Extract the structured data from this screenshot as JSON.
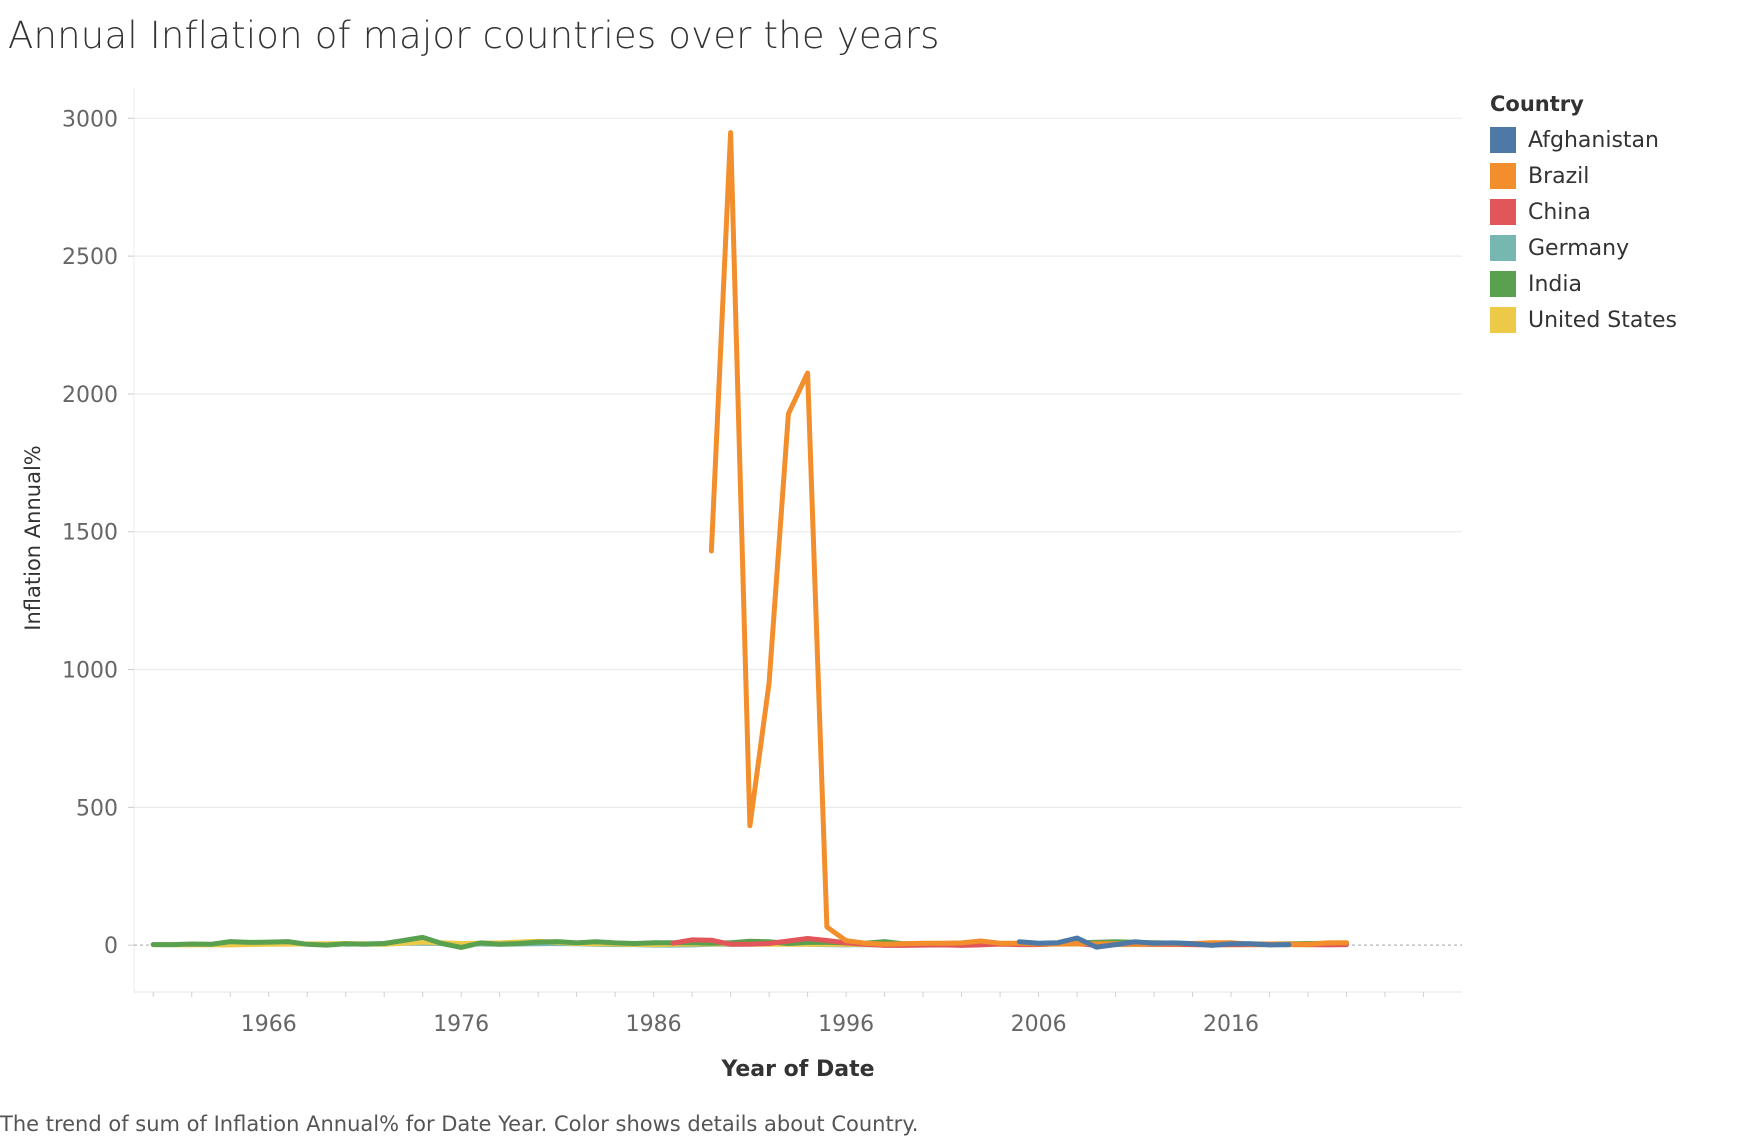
{
  "title": "Annual Inflation of major countries over the years",
  "caption": "The trend of sum of Inflation Annual% for Date Year.  Color shows details about Country.",
  "legend": {
    "title": "Country",
    "items": [
      {
        "label": "Afghanistan",
        "color": "#4e79a7"
      },
      {
        "label": "Brazil",
        "color": "#f28e2b"
      },
      {
        "label": "China",
        "color": "#e15759"
      },
      {
        "label": "Germany",
        "color": "#76b7b2"
      },
      {
        "label": "India",
        "color": "#59a14f"
      },
      {
        "label": "United States",
        "color": "#edc948"
      }
    ]
  },
  "chart_data": {
    "type": "line",
    "title": "Annual Inflation of major countries over the years",
    "xlabel": "Year of Date",
    "ylabel": "Inflation Annual%",
    "xlim": [
      1959,
      2028
    ],
    "ylim": [
      -170,
      3110
    ],
    "x_ticks": [
      "1966",
      "1976",
      "1986",
      "1996",
      "2006",
      "2016"
    ],
    "y_ticks": [
      "0",
      "500",
      "1000",
      "1500",
      "2000",
      "2500",
      "3000"
    ],
    "grid": true,
    "legend_position": "right",
    "series": [
      {
        "name": "Germany",
        "color": "#76b7b2",
        "x": [
          1970,
          1971,
          1972,
          1973,
          1974,
          1975,
          1976,
          1977,
          1978,
          1979,
          1980,
          1981,
          1982,
          1983,
          1984,
          1985,
          1986,
          1987,
          1988,
          1989,
          1990,
          1991,
          1992,
          1993,
          1994,
          1995,
          1996,
          1997,
          1998,
          1999,
          2000
        ],
        "y": [
          3,
          5,
          5,
          7,
          7,
          6,
          4,
          4,
          3,
          4,
          5,
          6,
          5,
          3,
          2,
          2,
          0,
          0,
          1,
          3,
          3,
          4,
          5,
          4,
          3,
          2,
          1,
          2,
          1,
          1,
          1
        ]
      },
      {
        "name": "United States",
        "color": "#edc948",
        "x": [
          1960,
          1962,
          1964,
          1966,
          1968,
          1970,
          1972,
          1974,
          1976,
          1978,
          1980,
          1982,
          1984,
          1986,
          1988,
          1990,
          1992,
          1994,
          1996,
          1998,
          2000,
          2002,
          2004,
          2006,
          2008,
          2010,
          2012,
          2014,
          2016,
          2018,
          2020,
          2022
        ],
        "y": [
          2,
          1,
          1,
          3,
          4,
          6,
          3,
          11,
          6,
          8,
          14,
          6,
          4,
          2,
          4,
          5,
          3,
          3,
          3,
          2,
          3,
          2,
          3,
          3,
          4,
          2,
          2,
          2,
          1,
          2,
          1,
          8
        ]
      },
      {
        "name": "India",
        "color": "#59a14f",
        "x": [
          1960,
          1961,
          1962,
          1963,
          1964,
          1965,
          1966,
          1967,
          1968,
          1969,
          1970,
          1971,
          1972,
          1973,
          1974,
          1975,
          1976,
          1977,
          1978,
          1979,
          1980,
          1981,
          1982,
          1983,
          1984,
          1985,
          1986,
          1987,
          1988,
          1989,
          1990,
          1991,
          1992,
          1993,
          1994,
          1995,
          1996,
          1997,
          1998,
          1999,
          2000,
          2002,
          2004,
          2006,
          2008,
          2010,
          2012,
          2014,
          2016,
          2018,
          2020,
          2022
        ],
        "y": [
          2,
          2,
          4,
          3,
          13,
          10,
          11,
          13,
          3,
          0,
          5,
          3,
          6,
          17,
          28,
          6,
          -8,
          8,
          3,
          6,
          11,
          13,
          8,
          12,
          8,
          6,
          9,
          9,
          9,
          7,
          9,
          14,
          12,
          6,
          10,
          10,
          9,
          7,
          13,
          5,
          4,
          4,
          4,
          6,
          8,
          12,
          9,
          6,
          5,
          4,
          6,
          7
        ]
      },
      {
        "name": "China",
        "color": "#e15759",
        "x": [
          1987,
          1988,
          1989,
          1990,
          1991,
          1992,
          1993,
          1994,
          1995,
          1996,
          1997,
          1998,
          1999,
          2000,
          2001,
          2002,
          2003,
          2004,
          2005,
          2006,
          2007,
          2008,
          2009,
          2010,
          2011,
          2012,
          2013,
          2014,
          2015,
          2016,
          2017,
          2018,
          2019,
          2020,
          2021,
          2022
        ],
        "y": [
          7,
          19,
          18,
          3,
          3,
          6,
          15,
          24,
          17,
          8,
          3,
          -1,
          -1,
          0,
          1,
          -1,
          1,
          4,
          2,
          2,
          5,
          6,
          -1,
          3,
          5,
          3,
          3,
          2,
          1,
          2,
          2,
          2,
          3,
          2,
          1,
          2
        ]
      },
      {
        "name": "Brazil",
        "color": "#f28e2b",
        "x": [
          1989,
          1990,
          1991,
          1992,
          1993,
          1994,
          1995,
          1996,
          1997,
          1998,
          1999,
          2000,
          2001,
          2002,
          2003,
          2004,
          2005,
          2006,
          2007,
          2008,
          2009,
          2010,
          2011,
          2012,
          2013,
          2014,
          2015,
          2016,
          2017,
          2018,
          2019,
          2020,
          2021,
          2022
        ],
        "y": [
          1430,
          2948,
          433,
          952,
          1928,
          2076,
          66,
          16,
          7,
          3,
          5,
          7,
          7,
          8,
          15,
          7,
          7,
          4,
          4,
          6,
          5,
          5,
          7,
          5,
          6,
          6,
          9,
          9,
          3,
          4,
          4,
          3,
          8,
          9
        ]
      },
      {
        "name": "Afghanistan",
        "color": "#4e79a7",
        "x": [
          2005,
          2006,
          2007,
          2008,
          2009,
          2010,
          2011,
          2012,
          2013,
          2014,
          2015,
          2016,
          2017,
          2018,
          2019
        ],
        "y": [
          12,
          7,
          9,
          26,
          -7,
          2,
          12,
          7,
          8,
          5,
          -1,
          5,
          5,
          1,
          2
        ]
      }
    ]
  }
}
